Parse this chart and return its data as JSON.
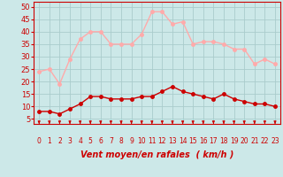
{
  "hours": [
    0,
    1,
    2,
    3,
    4,
    5,
    6,
    7,
    8,
    9,
    10,
    11,
    12,
    13,
    14,
    15,
    16,
    17,
    18,
    19,
    20,
    21,
    22,
    23
  ],
  "wind_avg": [
    8,
    8,
    7,
    9,
    11,
    14,
    14,
    13,
    13,
    13,
    14,
    14,
    16,
    18,
    16,
    15,
    14,
    13,
    15,
    13,
    12,
    11,
    11,
    10
  ],
  "wind_gust": [
    24,
    25,
    19,
    29,
    37,
    40,
    40,
    35,
    35,
    35,
    39,
    48,
    48,
    43,
    44,
    35,
    36,
    36,
    35,
    33,
    33,
    27,
    29,
    27
  ],
  "bg_color": "#cce8e8",
  "grid_color": "#aacccc",
  "avg_color": "#cc0000",
  "gust_color": "#ffaaaa",
  "axis_color": "#cc0000",
  "xlabel": "Vent moyen/en rafales  ( km/h )",
  "xlabel_fontsize": 7,
  "yticks": [
    5,
    10,
    15,
    20,
    25,
    30,
    35,
    40,
    45,
    50
  ],
  "ylim": [
    3,
    52
  ],
  "xlim": [
    -0.5,
    23.5
  ],
  "marker_size": 2.5,
  "line_width": 1.0
}
